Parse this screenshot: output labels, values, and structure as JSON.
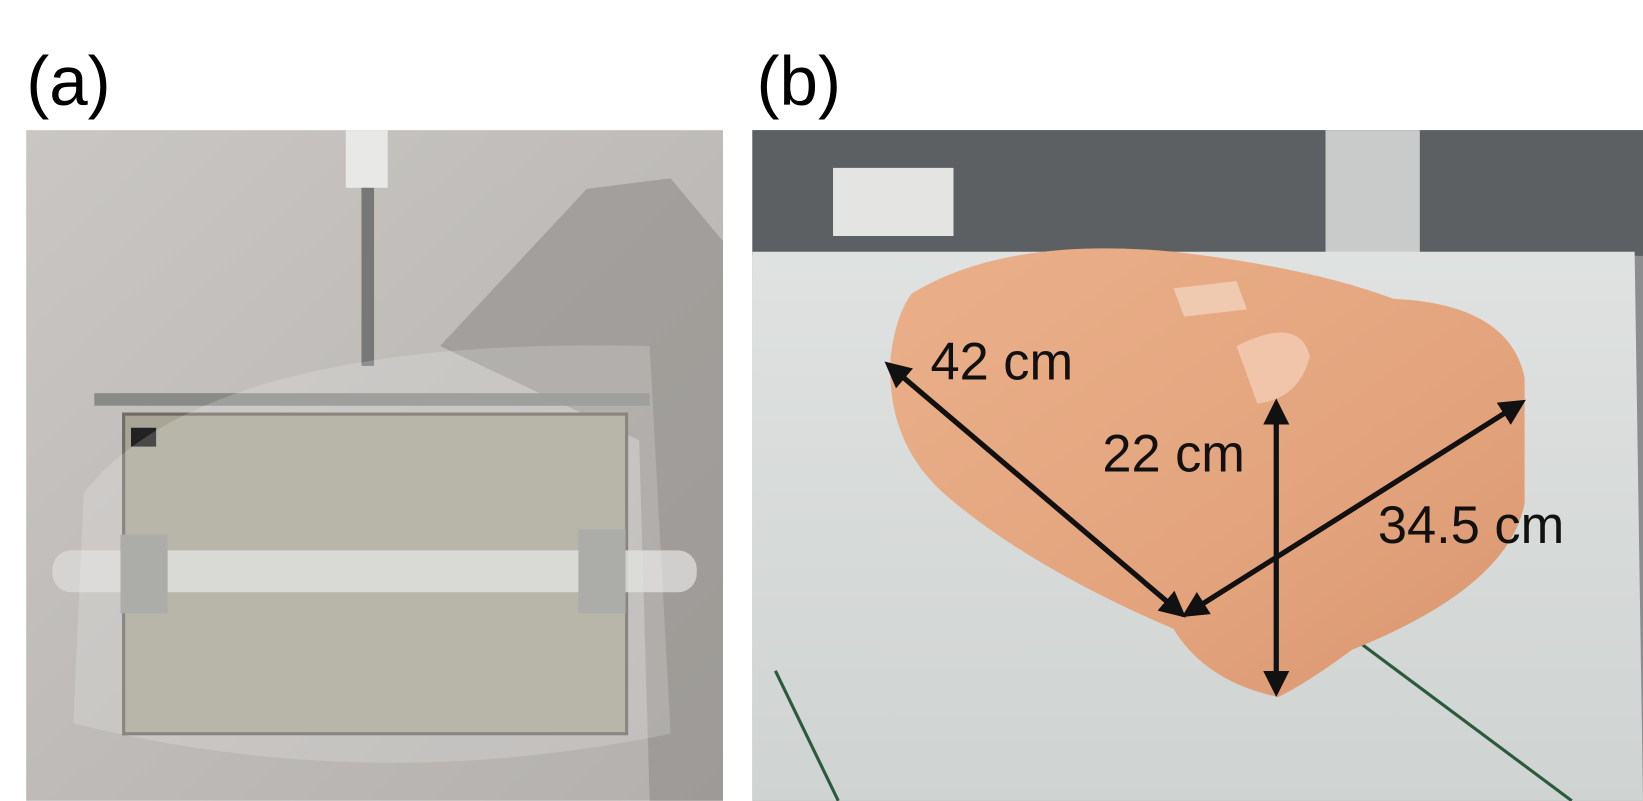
{
  "panels": [
    {
      "label": "(a)"
    },
    {
      "label": "(b)",
      "dimensions": [
        "42 cm",
        "22 cm",
        "34.5 cm"
      ]
    }
  ]
}
